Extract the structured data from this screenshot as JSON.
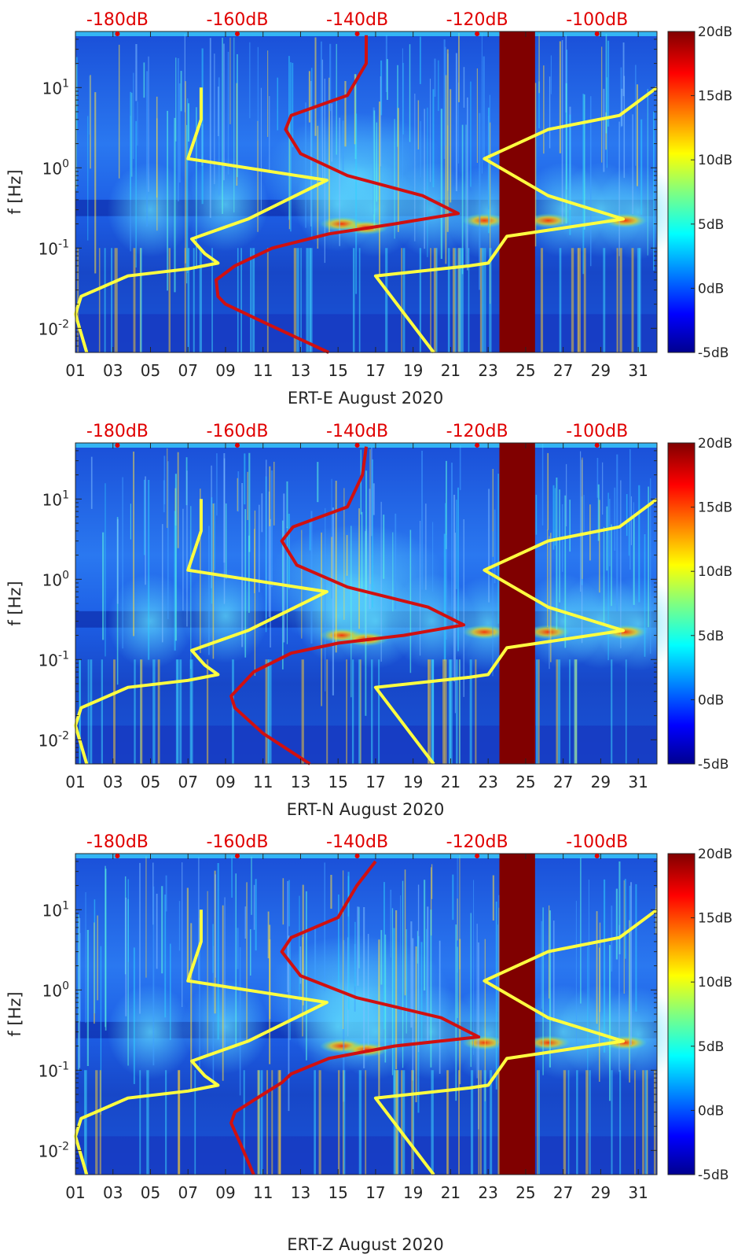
{
  "colors": {
    "yellow_curve": "#ffff40",
    "red_curve": "#d01010",
    "top_label": "#e00000",
    "gap_band": "#800000",
    "background_field": "#1f5fe0"
  },
  "chart_data": [
    {
      "type": "heatmap",
      "title": "ERT-E August 2020",
      "xlabel": "ERT-E August 2020",
      "ylabel": "f [Hz]",
      "xlim": [
        1,
        32
      ],
      "x_ticks": [
        "01",
        "03",
        "05",
        "07",
        "09",
        "11",
        "13",
        "15",
        "17",
        "19",
        "21",
        "23",
        "25",
        "27",
        "29",
        "31"
      ],
      "ylim": [
        0.005,
        50
      ],
      "yscale": "log",
      "y_ticks": [
        {
          "value": 0.01,
          "base": "10",
          "exp": "-2"
        },
        {
          "value": 0.1,
          "base": "10",
          "exp": "-1"
        },
        {
          "value": 1,
          "base": "10",
          "exp": "0"
        },
        {
          "value": 10,
          "base": "10",
          "exp": "1"
        }
      ],
      "top_axis": {
        "labels": [
          "-180dB",
          "-160dB",
          "-140dB",
          "-120dB",
          "-100dB"
        ],
        "values": [
          -180,
          -160,
          -140,
          -120,
          -100
        ],
        "range": [
          -187,
          -90
        ]
      },
      "colorbar": {
        "labels": [
          "20dB",
          "15dB",
          "10dB",
          "5dB",
          "0dB",
          "-5dB"
        ],
        "range": [
          -5,
          20
        ]
      },
      "data_gap_days": [
        23.6,
        25.5
      ],
      "series": [
        {
          "name": "yellow",
          "points": [
            [
              1.6,
              0.005
            ],
            [
              1.0,
              0.015
            ],
            [
              1.3,
              0.025
            ],
            [
              3.8,
              0.045
            ],
            [
              7.0,
              0.055
            ],
            [
              8.6,
              0.065
            ],
            [
              7.9,
              0.085
            ],
            [
              7.2,
              0.13
            ],
            [
              10.2,
              0.23
            ],
            [
              14.4,
              0.7
            ],
            [
              7.0,
              1.3
            ],
            [
              7.7,
              4.0
            ],
            [
              7.7,
              10.0
            ]
          ]
        },
        {
          "name": "yellow-high",
          "points": [
            [
              20.1,
              0.005
            ],
            [
              17.0,
              0.045
            ],
            [
              22.0,
              0.06
            ],
            [
              23.0,
              0.065
            ],
            [
              24.0,
              0.14
            ],
            [
              30.2,
              0.23
            ],
            [
              26.2,
              0.45
            ],
            [
              22.8,
              1.3
            ],
            [
              26.2,
              3.0
            ],
            [
              30.0,
              4.5
            ],
            [
              32.0,
              10.0
            ]
          ]
        },
        {
          "name": "red",
          "points": [
            [
              14.5,
              0.005
            ],
            [
              11.0,
              0.012
            ],
            [
              9.0,
              0.02
            ],
            [
              8.6,
              0.025
            ],
            [
              8.5,
              0.04
            ],
            [
              9.5,
              0.06
            ],
            [
              11.5,
              0.1
            ],
            [
              14.5,
              0.15
            ],
            [
              18.0,
              0.2
            ],
            [
              21.4,
              0.27
            ],
            [
              19.5,
              0.45
            ],
            [
              15.5,
              0.8
            ],
            [
              13.0,
              1.5
            ],
            [
              12.2,
              3.0
            ],
            [
              12.5,
              4.5
            ],
            [
              15.5,
              8.0
            ],
            [
              16.5,
              20.0
            ],
            [
              16.5,
              45.0
            ]
          ]
        }
      ]
    },
    {
      "type": "heatmap",
      "title": "ERT-N August 2020",
      "xlabel": "ERT-N August 2020",
      "ylabel": "f [Hz]",
      "xlim": [
        1,
        32
      ],
      "x_ticks": [
        "01",
        "03",
        "05",
        "07",
        "09",
        "11",
        "13",
        "15",
        "17",
        "19",
        "21",
        "23",
        "25",
        "27",
        "29",
        "31"
      ],
      "ylim": [
        0.005,
        50
      ],
      "yscale": "log",
      "y_ticks": [
        {
          "value": 0.01,
          "base": "10",
          "exp": "-2"
        },
        {
          "value": 0.1,
          "base": "10",
          "exp": "-1"
        },
        {
          "value": 1,
          "base": "10",
          "exp": "0"
        },
        {
          "value": 10,
          "base": "10",
          "exp": "1"
        }
      ],
      "top_axis": {
        "labels": [
          "-180dB",
          "-160dB",
          "-140dB",
          "-120dB",
          "-100dB"
        ],
        "values": [
          -180,
          -160,
          -140,
          -120,
          -100
        ],
        "range": [
          -187,
          -90
        ]
      },
      "colorbar": {
        "labels": [
          "20dB",
          "15dB",
          "10dB",
          "5dB",
          "0dB",
          "-5dB"
        ],
        "range": [
          -5,
          20
        ]
      },
      "data_gap_days": [
        23.6,
        25.5
      ],
      "series": [
        {
          "name": "yellow",
          "points": [
            [
              1.6,
              0.005
            ],
            [
              1.0,
              0.015
            ],
            [
              1.3,
              0.025
            ],
            [
              3.8,
              0.045
            ],
            [
              7.0,
              0.055
            ],
            [
              8.6,
              0.065
            ],
            [
              7.9,
              0.085
            ],
            [
              7.2,
              0.13
            ],
            [
              10.2,
              0.23
            ],
            [
              14.4,
              0.7
            ],
            [
              7.0,
              1.3
            ],
            [
              7.7,
              4.0
            ],
            [
              7.7,
              10.0
            ]
          ]
        },
        {
          "name": "yellow-high",
          "points": [
            [
              20.1,
              0.005
            ],
            [
              17.0,
              0.045
            ],
            [
              22.0,
              0.06
            ],
            [
              23.0,
              0.065
            ],
            [
              24.0,
              0.14
            ],
            [
              30.2,
              0.23
            ],
            [
              26.2,
              0.45
            ],
            [
              22.8,
              1.3
            ],
            [
              26.2,
              3.0
            ],
            [
              30.0,
              4.5
            ],
            [
              32.0,
              10.0
            ]
          ]
        },
        {
          "name": "red",
          "points": [
            [
              13.5,
              0.005
            ],
            [
              11.0,
              0.012
            ],
            [
              9.5,
              0.025
            ],
            [
              9.3,
              0.035
            ],
            [
              10.5,
              0.07
            ],
            [
              12.5,
              0.12
            ],
            [
              15.0,
              0.16
            ],
            [
              18.5,
              0.2
            ],
            [
              21.7,
              0.27
            ],
            [
              19.8,
              0.45
            ],
            [
              15.5,
              0.8
            ],
            [
              12.8,
              1.5
            ],
            [
              12.0,
              3.0
            ],
            [
              12.6,
              4.5
            ],
            [
              15.5,
              8.0
            ],
            [
              16.3,
              20.0
            ],
            [
              16.5,
              45.0
            ]
          ]
        }
      ]
    },
    {
      "type": "heatmap",
      "title": "ERT-Z August 2020",
      "xlabel": "ERT-Z August 2020",
      "ylabel": "f [Hz]",
      "xlim": [
        1,
        32
      ],
      "x_ticks": [
        "01",
        "03",
        "05",
        "07",
        "09",
        "11",
        "13",
        "15",
        "17",
        "19",
        "21",
        "23",
        "25",
        "27",
        "29",
        "31"
      ],
      "ylim": [
        0.005,
        50
      ],
      "yscale": "log",
      "y_ticks": [
        {
          "value": 0.01,
          "base": "10",
          "exp": "-2"
        },
        {
          "value": 0.1,
          "base": "10",
          "exp": "-1"
        },
        {
          "value": 1,
          "base": "10",
          "exp": "0"
        },
        {
          "value": 10,
          "base": "10",
          "exp": "1"
        }
      ],
      "top_axis": {
        "labels": [
          "-180dB",
          "-160dB",
          "-140dB",
          "-120dB",
          "-100dB"
        ],
        "values": [
          -180,
          -160,
          -140,
          -120,
          -100
        ],
        "range": [
          -187,
          -90
        ]
      },
      "colorbar": {
        "labels": [
          "20dB",
          "15dB",
          "10dB",
          "5dB",
          "0dB",
          "-5dB"
        ],
        "range": [
          -5,
          20
        ]
      },
      "data_gap_days": [
        23.6,
        25.5
      ],
      "series": [
        {
          "name": "yellow",
          "points": [
            [
              1.6,
              0.005
            ],
            [
              1.0,
              0.015
            ],
            [
              1.3,
              0.025
            ],
            [
              3.8,
              0.045
            ],
            [
              7.0,
              0.055
            ],
            [
              8.6,
              0.065
            ],
            [
              7.9,
              0.085
            ],
            [
              7.2,
              0.13
            ],
            [
              10.2,
              0.23
            ],
            [
              14.4,
              0.7
            ],
            [
              7.0,
              1.3
            ],
            [
              7.7,
              4.0
            ],
            [
              7.7,
              10.0
            ]
          ]
        },
        {
          "name": "yellow-high",
          "points": [
            [
              20.1,
              0.005
            ],
            [
              17.0,
              0.045
            ],
            [
              22.0,
              0.06
            ],
            [
              23.0,
              0.065
            ],
            [
              24.0,
              0.14
            ],
            [
              30.2,
              0.23
            ],
            [
              26.2,
              0.45
            ],
            [
              22.8,
              1.3
            ],
            [
              26.2,
              3.0
            ],
            [
              30.0,
              4.5
            ],
            [
              32.0,
              10.0
            ]
          ]
        },
        {
          "name": "red",
          "points": [
            [
              10.5,
              0.005
            ],
            [
              9.8,
              0.012
            ],
            [
              9.3,
              0.022
            ],
            [
              9.5,
              0.03
            ],
            [
              11.0,
              0.05
            ],
            [
              12.0,
              0.07
            ],
            [
              12.5,
              0.09
            ],
            [
              14.5,
              0.14
            ],
            [
              18.0,
              0.2
            ],
            [
              22.5,
              0.26
            ],
            [
              20.5,
              0.45
            ],
            [
              16.0,
              0.8
            ],
            [
              13.0,
              1.5
            ],
            [
              12.0,
              3.0
            ],
            [
              12.5,
              4.5
            ],
            [
              15.0,
              8.0
            ],
            [
              16.0,
              20.0
            ],
            [
              17.0,
              40.0
            ]
          ]
        }
      ]
    }
  ]
}
